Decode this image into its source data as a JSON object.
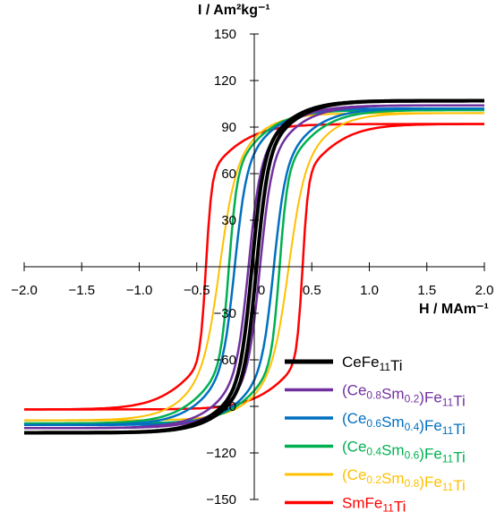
{
  "chart_data": {
    "type": "line",
    "title": "",
    "xlabel": "H / MAm⁻¹",
    "ylabel": "I / Am²kg⁻¹",
    "xlim": [
      -2.0,
      2.0
    ],
    "ylim": [
      -150,
      150
    ],
    "x_ticks": [
      "-2.0",
      "-1.5",
      "-1.0",
      "-0.5",
      "0",
      "0.5",
      "1.0",
      "1.5",
      "2.0"
    ],
    "y_ticks": [
      "-150",
      "-120",
      "-90",
      "-60",
      "-30",
      "30",
      "60",
      "90",
      "120",
      "150"
    ],
    "grid": false,
    "legend_position": "bottom-right",
    "series": [
      {
        "name": "CeFe11Ti",
        "label_parts": [
          [
            "CeFe",
            ""
          ],
          [
            "11",
            "sub"
          ],
          [
            "Ti",
            ""
          ]
        ],
        "color": "#000000",
        "label_color": "#000000",
        "width": 4,
        "Ms": 107,
        "Hc": 0.02,
        "w": 0.1,
        "k": 2.5,
        "A": 38
      },
      {
        "name": "(Ce0.8Sm0.2)Fe11Ti",
        "label_parts": [
          [
            "(Ce",
            ""
          ],
          [
            "0.8",
            "sub"
          ],
          [
            "Sm",
            ""
          ],
          [
            "0.2",
            "sub"
          ],
          [
            ")Fe",
            ""
          ],
          [
            "11",
            "sub"
          ],
          [
            "Ti",
            ""
          ]
        ],
        "color": "#7030a0",
        "label_color": "#7030a0",
        "width": 2.5,
        "Ms": 104,
        "Hc": 0.05,
        "w": 0.1,
        "k": 2.5,
        "A": 40
      },
      {
        "name": "(Ce0.6Sm0.4)Fe11Ti",
        "label_parts": [
          [
            "(Ce",
            ""
          ],
          [
            "0.6",
            "sub"
          ],
          [
            "Sm",
            ""
          ],
          [
            "0.4",
            "sub"
          ],
          [
            ")Fe",
            ""
          ],
          [
            "11",
            "sub"
          ],
          [
            "Ti",
            ""
          ]
        ],
        "color": "#0070c0",
        "label_color": "#0070c0",
        "width": 2.5,
        "Ms": 102,
        "Hc": 0.17,
        "w": 0.1,
        "k": 2.5,
        "A": 42
      },
      {
        "name": "(Ce0.4Sm0.6)Fe11Ti",
        "label_parts": [
          [
            "(Ce",
            ""
          ],
          [
            "0.4",
            "sub"
          ],
          [
            "Sm",
            ""
          ],
          [
            "0.6",
            "sub"
          ],
          [
            ")Fe",
            ""
          ],
          [
            "11",
            "sub"
          ],
          [
            "Ti",
            ""
          ]
        ],
        "color": "#00b050",
        "label_color": "#00b050",
        "width": 2.5,
        "Ms": 101,
        "Hc": 0.22,
        "w": 0.07,
        "k": 2.5,
        "A": 42
      },
      {
        "name": "(Ce0.2Sm0.8)Fe11Ti",
        "label_parts": [
          [
            "(Ce",
            ""
          ],
          [
            "0.2",
            "sub"
          ],
          [
            "Sm",
            ""
          ],
          [
            "0.8",
            "sub"
          ],
          [
            ")Fe",
            ""
          ],
          [
            "11",
            "sub"
          ],
          [
            "Ti",
            ""
          ]
        ],
        "color": "#ffc000",
        "label_color": "#ffc000",
        "width": 2,
        "Ms": 99,
        "Hc": 0.3,
        "w": 0.13,
        "k": 2.6,
        "A": 44
      },
      {
        "name": "SmFe11Ti",
        "label_parts": [
          [
            "SmFe",
            ""
          ],
          [
            "11",
            "sub"
          ],
          [
            "Ti",
            ""
          ]
        ],
        "color": "#ff0000",
        "label_color": "#ff0000",
        "width": 2.5,
        "Ms": 92,
        "Hc": 0.42,
        "w": 0.05,
        "k": 2.5,
        "A": 33
      }
    ]
  }
}
